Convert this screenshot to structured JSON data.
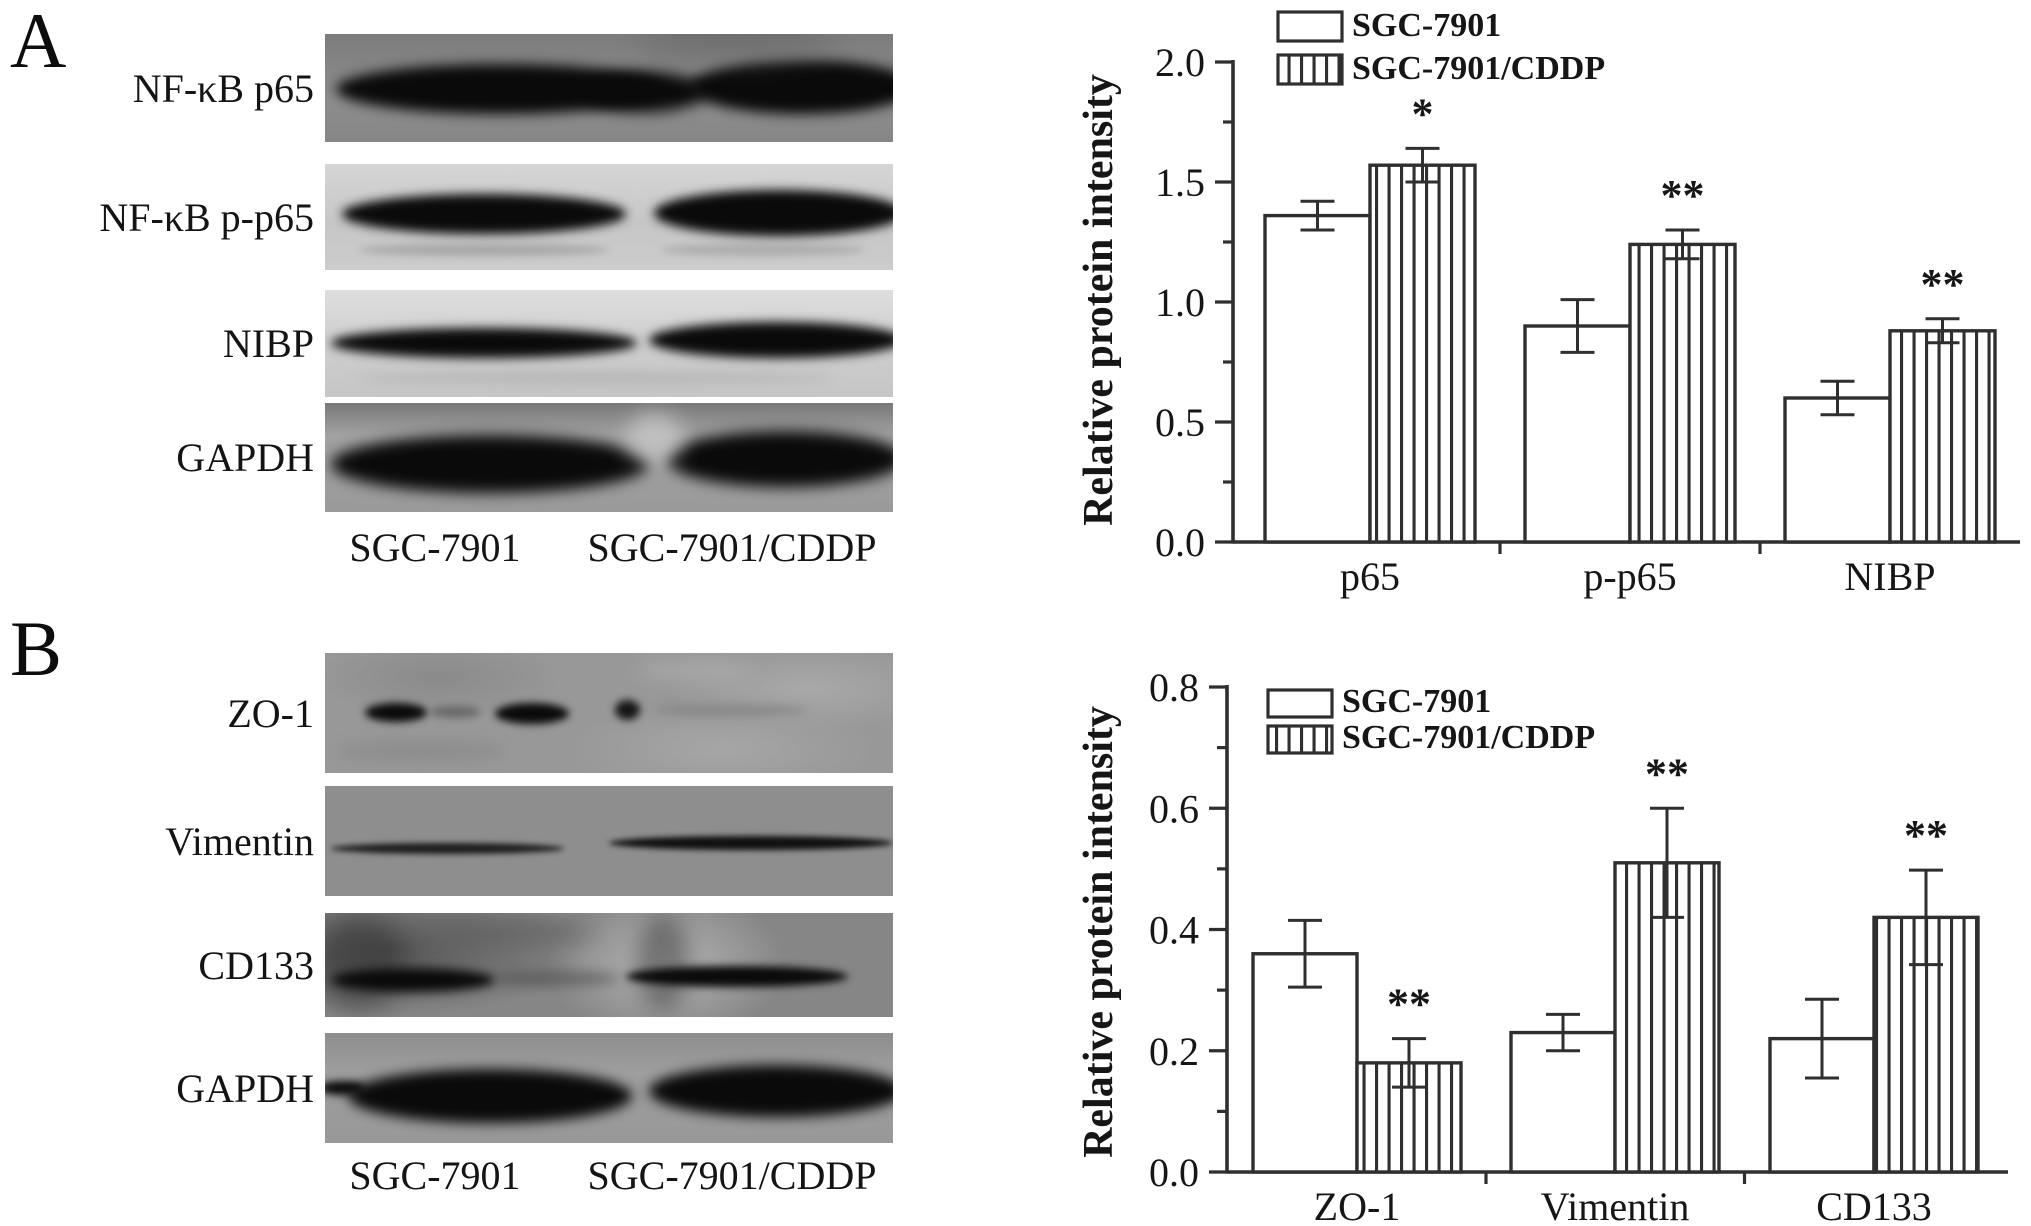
{
  "figure": {
    "panel_a": {
      "label": "A",
      "rows": [
        {
          "label": "NF-κB p65"
        },
        {
          "label": "NF-κB p-p65"
        },
        {
          "label": "NIBP"
        },
        {
          "label": "GAPDH"
        }
      ],
      "lane_labels": [
        "SGC-7901",
        "SGC-7901/CDDP"
      ]
    },
    "panel_b": {
      "label": "B",
      "rows": [
        {
          "label": "ZO-1"
        },
        {
          "label": "Vimentin"
        },
        {
          "label": "CD133"
        },
        {
          "label": "GAPDH"
        }
      ],
      "lane_labels": [
        "SGC-7901",
        "SGC-7901/CDDP"
      ]
    }
  },
  "colors": {
    "ink": "#161616",
    "chart_line": "#2f2f2f",
    "bar_fill_white": "#ffffff"
  },
  "chart_data": [
    {
      "type": "bar",
      "title": "",
      "xlabel": "",
      "ylabel": "Relative protein intensity",
      "categories": [
        "p65",
        "p-p65",
        "NIBP"
      ],
      "ylim": [
        0,
        2.0
      ],
      "ytick_step": 0.5,
      "minor_tick": 0.25,
      "ytick_labels": [
        "0.0",
        "0.5",
        "1.0",
        "1.5",
        "2.0"
      ],
      "grid": false,
      "legend_position": "top",
      "legend": [
        "SGC-7901",
        "SGC-7901/CDDP"
      ],
      "series": [
        {
          "name": "SGC-7901",
          "style": "open",
          "values": [
            1.36,
            0.9,
            0.6
          ],
          "errors": [
            0.06,
            0.11,
            0.07
          ]
        },
        {
          "name": "SGC-7901/CDDP",
          "style": "hatched",
          "values": [
            1.57,
            1.24,
            0.88
          ],
          "errors": [
            0.07,
            0.06,
            0.05
          ]
        }
      ],
      "significance": [
        "*",
        "**",
        "**"
      ]
    },
    {
      "type": "bar",
      "title": "",
      "xlabel": "",
      "ylabel": "Relative protein intensity",
      "categories": [
        "ZO-1",
        "Vimentin",
        "CD133"
      ],
      "ylim": [
        0,
        0.8
      ],
      "ytick_step": 0.2,
      "minor_tick": 0.1,
      "ytick_labels": [
        "0.0",
        "0.2",
        "0.4",
        "0.6",
        "0.8"
      ],
      "grid": false,
      "legend_position": "inside-top-left",
      "legend": [
        "SGC-7901",
        "SGC-7901/CDDP"
      ],
      "series": [
        {
          "name": "SGC-7901",
          "style": "open",
          "values": [
            0.36,
            0.23,
            0.22
          ],
          "errors": [
            0.055,
            0.03,
            0.065
          ]
        },
        {
          "name": "SGC-7901/CDDP",
          "style": "hatched",
          "values": [
            0.18,
            0.51,
            0.42
          ],
          "errors": [
            0.04,
            0.09,
            0.078
          ]
        }
      ],
      "significance": [
        "**",
        "**",
        "**"
      ]
    }
  ]
}
